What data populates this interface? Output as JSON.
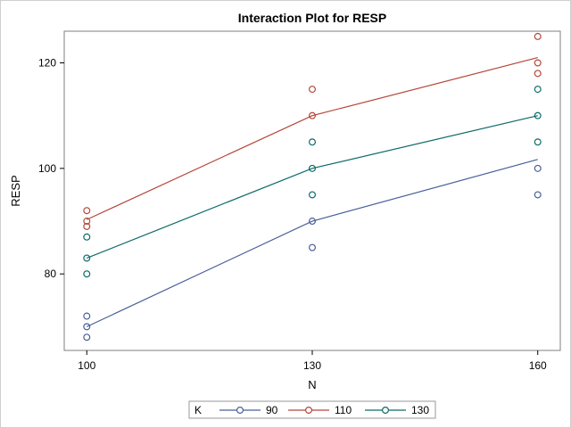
{
  "chart_data": {
    "type": "line",
    "title": "Interaction Plot for RESP",
    "xlabel": "N",
    "ylabel": "RESP",
    "x_ticks": [
      100,
      130,
      160
    ],
    "y_ticks": [
      80,
      100,
      120
    ],
    "xlim": [
      97,
      163
    ],
    "ylim": [
      65.5,
      126
    ],
    "grid": false,
    "legend": {
      "title": "K",
      "placement": "bottom"
    },
    "series": [
      {
        "name": "90",
        "color": "#4a5f9a",
        "line": [
          [
            100,
            70
          ],
          [
            130,
            90
          ],
          [
            160,
            101.7
          ]
        ],
        "points": [
          [
            100,
            72
          ],
          [
            100,
            70
          ],
          [
            100,
            68
          ],
          [
            130,
            90
          ],
          [
            130,
            85
          ],
          [
            160,
            100
          ],
          [
            160,
            95
          ]
        ]
      },
      {
        "name": "110",
        "color": "#b5473a",
        "line": [
          [
            100,
            90.3
          ],
          [
            130,
            110
          ],
          [
            160,
            121
          ]
        ],
        "points": [
          [
            100,
            92
          ],
          [
            100,
            90
          ],
          [
            100,
            89
          ],
          [
            130,
            115
          ],
          [
            130,
            110
          ],
          [
            160,
            125
          ],
          [
            160,
            120
          ],
          [
            160,
            118
          ]
        ]
      },
      {
        "name": "130",
        "color": "#0d6b68",
        "line": [
          [
            100,
            83
          ],
          [
            130,
            100
          ],
          [
            160,
            110
          ]
        ],
        "points": [
          [
            100,
            87
          ],
          [
            100,
            83
          ],
          [
            100,
            80
          ],
          [
            130,
            105
          ],
          [
            130,
            100
          ],
          [
            130,
            95
          ],
          [
            160,
            115
          ],
          [
            160,
            110
          ],
          [
            160,
            105
          ]
        ]
      }
    ]
  }
}
